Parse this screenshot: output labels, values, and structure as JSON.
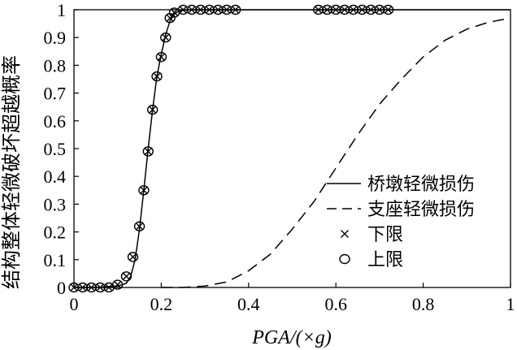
{
  "chart_data": {
    "type": "line",
    "xlabel": "PGA/(×g)",
    "ylabel": "结构整体轻微破坏超越概率",
    "xlim": [
      0,
      1
    ],
    "ylim": [
      0,
      1
    ],
    "x_ticks": [
      "0",
      "0.2",
      "0.4",
      "0.6",
      "0.8",
      "1"
    ],
    "y_ticks": [
      "0",
      "0.1",
      "0.2",
      "0.3",
      "0.4",
      "0.5",
      "0.6",
      "0.7",
      "0.8",
      "0.9",
      "1"
    ],
    "grid": false,
    "legend_position": "right",
    "series": [
      {
        "name": "桥墩轻微损伤",
        "style": "solid",
        "color": "#000000",
        "x": [
          0.0,
          0.05,
          0.1,
          0.12,
          0.13,
          0.14,
          0.15,
          0.16,
          0.17,
          0.18,
          0.19,
          0.2,
          0.21,
          0.22,
          0.23,
          0.24,
          0.26,
          0.3,
          0.4,
          0.6,
          0.8,
          1.0
        ],
        "y": [
          0.0,
          0.0,
          0.005,
          0.015,
          0.04,
          0.1,
          0.21,
          0.35,
          0.5,
          0.64,
          0.76,
          0.84,
          0.91,
          0.96,
          0.985,
          0.995,
          1.0,
          1.0,
          1.0,
          1.0,
          1.0,
          1.0
        ]
      },
      {
        "name": "支座轻微损伤",
        "style": "dashed",
        "color": "#000000",
        "x": [
          0.2,
          0.25,
          0.3,
          0.35,
          0.4,
          0.45,
          0.5,
          0.55,
          0.6,
          0.65,
          0.7,
          0.75,
          0.8,
          0.85,
          0.9,
          0.95,
          1.0
        ],
        "y": [
          0.0,
          0.0,
          0.005,
          0.02,
          0.06,
          0.12,
          0.21,
          0.31,
          0.43,
          0.55,
          0.66,
          0.75,
          0.83,
          0.89,
          0.93,
          0.955,
          0.97
        ]
      },
      {
        "name": "下限",
        "style": "marker-x",
        "color": "#000000",
        "x": [
          0.0,
          0.02,
          0.04,
          0.06,
          0.08,
          0.1,
          0.12,
          0.135,
          0.15,
          0.16,
          0.17,
          0.18,
          0.19,
          0.2,
          0.21,
          0.22,
          0.23,
          0.25,
          0.27,
          0.29,
          0.31,
          0.33,
          0.35,
          0.37,
          0.56,
          0.58,
          0.6,
          0.62,
          0.64,
          0.66,
          0.68,
          0.7,
          0.72
        ],
        "y": [
          0.0,
          0.0,
          0.0,
          0.0,
          0.0,
          0.01,
          0.04,
          0.11,
          0.22,
          0.35,
          0.49,
          0.64,
          0.76,
          0.83,
          0.9,
          0.97,
          0.99,
          1.0,
          1.0,
          1.0,
          1.0,
          1.0,
          1.0,
          1.0,
          1.0,
          1.0,
          1.0,
          1.0,
          1.0,
          1.0,
          1.0,
          1.0,
          1.0
        ]
      },
      {
        "name": "上限",
        "style": "marker-o",
        "color": "#000000",
        "x": [
          0.0,
          0.02,
          0.04,
          0.06,
          0.08,
          0.1,
          0.12,
          0.135,
          0.15,
          0.16,
          0.17,
          0.18,
          0.19,
          0.2,
          0.21,
          0.22,
          0.23,
          0.25,
          0.27,
          0.29,
          0.31,
          0.33,
          0.35,
          0.37,
          0.56,
          0.58,
          0.6,
          0.62,
          0.64,
          0.66,
          0.68,
          0.7,
          0.72
        ],
        "y": [
          0.0,
          0.0,
          0.0,
          0.0,
          0.0,
          0.01,
          0.04,
          0.11,
          0.22,
          0.35,
          0.49,
          0.64,
          0.76,
          0.83,
          0.9,
          0.97,
          0.99,
          1.0,
          1.0,
          1.0,
          1.0,
          1.0,
          1.0,
          1.0,
          1.0,
          1.0,
          1.0,
          1.0,
          1.0,
          1.0,
          1.0,
          1.0,
          1.0
        ]
      }
    ]
  }
}
